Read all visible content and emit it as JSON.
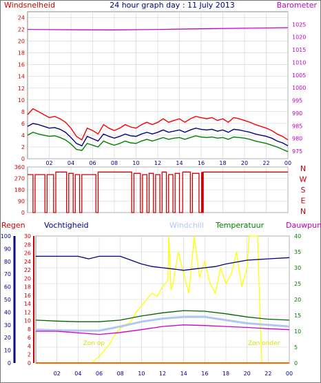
{
  "header": {
    "left_label": "Windsnelheid",
    "title": "24 hour graph day : 11 July 2013",
    "right_label": "Barometer"
  },
  "colors": {
    "wind_gust": "#ff0000",
    "wind_avg": "#000080",
    "wind_min": "#008000",
    "barometer": "#c000c0",
    "direction": "#cc0000",
    "humidity": "#000080",
    "rain": "#ff6600",
    "windchill": "#b0c8f0",
    "temperature": "#006400",
    "dewpoint": "#cc00cc",
    "sun": "#ffff00",
    "grid": "#d0d0d0",
    "axis_rain": "#cc0000",
    "axis_humidity": "#000080",
    "axis_temp": "#008000"
  },
  "chart_data": [
    {
      "type": "line",
      "id": "wind",
      "x_ticks": [
        "02",
        "04",
        "06",
        "08",
        "10",
        "12",
        "14",
        "16",
        "18",
        "20",
        "22",
        "00"
      ],
      "xlim": [
        0,
        24
      ],
      "left_axis": {
        "label": "Windsnelheid",
        "ticks": [
          0,
          2,
          4,
          6,
          8,
          10,
          12,
          14,
          16,
          18,
          20,
          22,
          24
        ],
        "ylim": [
          0,
          25
        ]
      },
      "right_axis": {
        "label": "Barometer",
        "ticks": [
          975,
          980,
          985,
          990,
          995,
          1000,
          1005,
          1010,
          1015,
          1020,
          1025
        ],
        "ylim": [
          972,
          1030
        ]
      },
      "series": [
        {
          "key": "wind_gust",
          "axis": "left",
          "hours": [
            0,
            0.5,
            1,
            1.5,
            2,
            2.5,
            3,
            3.5,
            4,
            4.5,
            5,
            5.5,
            6,
            6.5,
            7,
            7.5,
            8,
            8.5,
            9,
            9.5,
            10,
            10.5,
            11,
            11.5,
            12,
            12.5,
            13,
            13.5,
            14,
            14.5,
            15,
            15.5,
            16,
            16.5,
            17,
            17.5,
            18,
            18.5,
            19,
            19.5,
            20,
            20.5,
            21,
            21.5,
            22,
            22.5,
            23,
            23.5,
            24
          ],
          "values": [
            7.5,
            8.5,
            8,
            7.5,
            7,
            7.2,
            6.8,
            6.2,
            5.2,
            3.8,
            3.2,
            5.2,
            4.8,
            4.2,
            5.8,
            5.2,
            4.8,
            5.2,
            5.8,
            5.4,
            5.2,
            5.8,
            6.2,
            5.8,
            6.2,
            6.8,
            6.2,
            6.5,
            6.8,
            6.2,
            6.8,
            7.2,
            7.0,
            6.8,
            7.0,
            6.5,
            6.8,
            6.2,
            7.0,
            6.8,
            6.5,
            6.2,
            5.8,
            5.5,
            5.2,
            4.8,
            4.2,
            3.8,
            3.2
          ]
        },
        {
          "key": "wind_avg",
          "axis": "left",
          "hours": [
            0,
            0.5,
            1,
            1.5,
            2,
            2.5,
            3,
            3.5,
            4,
            4.5,
            5,
            5.5,
            6,
            6.5,
            7,
            7.5,
            8,
            8.5,
            9,
            9.5,
            10,
            10.5,
            11,
            11.5,
            12,
            12.5,
            13,
            13.5,
            14,
            14.5,
            15,
            15.5,
            16,
            16.5,
            17,
            17.5,
            18,
            18.5,
            19,
            19.5,
            20,
            20.5,
            21,
            21.5,
            22,
            22.5,
            23,
            23.5,
            24
          ],
          "values": [
            5.5,
            6,
            5.8,
            5.5,
            5.2,
            5.3,
            5,
            4.5,
            3.6,
            2.6,
            2.2,
            3.8,
            3.4,
            3,
            4.2,
            3.8,
            3.5,
            3.8,
            4.2,
            3.9,
            3.8,
            4.2,
            4.5,
            4.2,
            4.5,
            4.9,
            4.5,
            4.7,
            4.9,
            4.5,
            4.9,
            5.2,
            5.0,
            4.9,
            5.0,
            4.7,
            4.9,
            4.5,
            5.0,
            4.9,
            4.7,
            4.5,
            4.2,
            4.0,
            3.8,
            3.5,
            3.0,
            2.7,
            2.2
          ]
        },
        {
          "key": "wind_min",
          "axis": "left",
          "hours": [
            0,
            0.5,
            1,
            1.5,
            2,
            2.5,
            3,
            3.5,
            4,
            4.5,
            5,
            5.5,
            6,
            6.5,
            7,
            7.5,
            8,
            8.5,
            9,
            9.5,
            10,
            10.5,
            11,
            11.5,
            12,
            12.5,
            13,
            13.5,
            14,
            14.5,
            15,
            15.5,
            16,
            16.5,
            17,
            17.5,
            18,
            18.5,
            19,
            19.5,
            20,
            20.5,
            21,
            21.5,
            22,
            22.5,
            23,
            23.5,
            24
          ],
          "values": [
            4,
            4.5,
            4.2,
            4,
            3.8,
            3.9,
            3.6,
            3.2,
            2.5,
            1.6,
            1.4,
            2.6,
            2.3,
            2,
            3,
            2.6,
            2.3,
            2.6,
            3,
            2.7,
            2.6,
            3.0,
            3.3,
            3.0,
            3.3,
            3.6,
            3.3,
            3.5,
            3.6,
            3.3,
            3.6,
            3.9,
            3.7,
            3.6,
            3.7,
            3.5,
            3.6,
            3.3,
            3.7,
            3.6,
            3.5,
            3.3,
            3.0,
            2.8,
            2.6,
            2.3,
            2.0,
            1.6,
            1.2
          ]
        },
        {
          "key": "barometer",
          "axis": "right",
          "hours": [
            0,
            4,
            8,
            12,
            16,
            20,
            24
          ],
          "values": [
            1023,
            1022.9,
            1022.8,
            1023.0,
            1023.3,
            1023.5,
            1023.7
          ]
        }
      ]
    },
    {
      "type": "line",
      "id": "direction",
      "x_ticks": [
        "02",
        "04",
        "06",
        "08",
        "10",
        "12",
        "14",
        "16",
        "18",
        "20",
        "22",
        "00"
      ],
      "xlim": [
        0,
        24
      ],
      "left_axis": {
        "ticks": [
          0,
          90,
          180,
          270,
          360
        ],
        "ylim": [
          0,
          360
        ]
      },
      "right_labels": [
        "N",
        "W",
        "S",
        "E",
        "N"
      ],
      "series": [
        {
          "key": "direction",
          "hours": [
            0,
            0.5,
            0.5,
            0.7,
            0.7,
            1.6,
            1.6,
            1.8,
            1.8,
            2.4,
            2.4,
            2.6,
            2.6,
            3.6,
            3.6,
            3.8,
            3.8,
            4.2,
            4.2,
            4.4,
            4.4,
            4.8,
            4.8,
            5,
            5,
            6.3,
            6.3,
            6.5,
            6.5,
            9.6,
            9.6,
            9.8,
            9.8,
            10.4,
            10.4,
            10.6,
            10.6,
            11,
            11,
            11.2,
            11.2,
            11.6,
            11.6,
            11.8,
            11.8,
            12.2,
            12.2,
            12.4,
            12.4,
            12.8,
            12.8,
            13,
            13,
            13.4,
            13.4,
            13.6,
            13.6,
            14,
            14,
            14.3,
            14.3,
            15,
            15,
            15.2,
            15.2,
            15.8,
            15.8,
            16,
            16,
            16.2,
            16.2,
            24
          ],
          "values": [
            300,
            300,
            0,
            0,
            300,
            300,
            0,
            0,
            300,
            300,
            0,
            0,
            320,
            320,
            0,
            0,
            310,
            310,
            0,
            0,
            300,
            300,
            0,
            0,
            300,
            300,
            0,
            0,
            320,
            320,
            0,
            0,
            310,
            310,
            0,
            0,
            300,
            300,
            0,
            0,
            310,
            310,
            0,
            0,
            300,
            300,
            0,
            0,
            320,
            320,
            0,
            0,
            300,
            300,
            0,
            0,
            310,
            310,
            0,
            0,
            320,
            320,
            0,
            0,
            310,
            310,
            0,
            0,
            0,
            0,
            320,
            320
          ]
        }
      ]
    },
    {
      "type": "line",
      "id": "climate",
      "x_ticks": [
        "02",
        "04",
        "06",
        "08",
        "10",
        "12",
        "14",
        "16",
        "18",
        "20",
        "22",
        "00"
      ],
      "xlim": [
        0,
        24
      ],
      "legend": [
        "Regen",
        "Vochtigheid",
        "Windchill",
        "Temperatuur",
        "Dauwpunt"
      ],
      "humidity_axis": {
        "ticks": [
          0,
          10,
          20,
          30,
          40,
          50,
          60,
          70,
          80,
          90,
          100
        ],
        "ylim": [
          0,
          100
        ]
      },
      "rain_axis": {
        "ticks": [
          0,
          2,
          4,
          6,
          8,
          10,
          12,
          14,
          16,
          18,
          20,
          22,
          24,
          26,
          28,
          30
        ],
        "ylim": [
          0,
          30
        ]
      },
      "temp_axis": {
        "ticks": [
          0,
          5,
          10,
          15,
          20,
          25,
          30,
          35,
          40
        ],
        "ylim": [
          0,
          40
        ]
      },
      "annotations": [
        {
          "label": "Zon op",
          "hour": 5.5
        },
        {
          "label": "Zon onder",
          "hour": 21.6
        }
      ],
      "series": [
        {
          "key": "humidity",
          "axis": "humidity",
          "hours": [
            0,
            2,
            4,
            5,
            6,
            8,
            10,
            11,
            12,
            13,
            14,
            15,
            16,
            17,
            18,
            20,
            22,
            24
          ],
          "values": [
            84,
            84,
            84,
            82,
            84,
            84,
            78,
            76,
            75,
            74,
            73,
            74,
            75,
            76,
            78,
            81,
            82,
            83
          ]
        },
        {
          "key": "rain",
          "axis": "rain",
          "hours": [
            0,
            24
          ],
          "values": [
            0,
            0
          ]
        },
        {
          "key": "windchill",
          "axis": "temp",
          "hours": [
            0,
            2,
            4,
            6,
            8,
            10,
            12,
            14,
            16,
            18,
            20,
            22,
            24
          ],
          "values": [
            10.5,
            10.3,
            10.2,
            10.2,
            11.5,
            13.0,
            14.0,
            14.5,
            14.5,
            13.5,
            12.5,
            12.0,
            11.5
          ]
        },
        {
          "key": "temperature",
          "axis": "temp",
          "hours": [
            0,
            2,
            4,
            6,
            8,
            10,
            12,
            14,
            16,
            18,
            20,
            22,
            24
          ],
          "values": [
            13.5,
            13.2,
            13.0,
            13.0,
            13.5,
            14.8,
            15.8,
            16.5,
            16.3,
            15.5,
            14.5,
            13.8,
            13.5
          ]
        },
        {
          "key": "dewpoint",
          "axis": "temp",
          "hours": [
            0,
            2,
            4,
            6,
            8,
            10,
            12,
            14,
            16,
            18,
            20,
            22,
            24
          ],
          "values": [
            10.0,
            10.0,
            9.5,
            9.0,
            9.6,
            10.5,
            11.5,
            12.0,
            11.8,
            11.5,
            11.2,
            10.8,
            10.5
          ]
        },
        {
          "key": "sun",
          "axis": "temp",
          "hours": [
            0,
            5.4,
            5.6,
            6,
            6.5,
            7,
            7.5,
            8,
            8.5,
            9,
            9.5,
            10,
            10.5,
            11,
            11.5,
            12,
            12.5,
            12.6,
            12.8,
            13,
            13.5,
            14,
            14.5,
            15,
            15.5,
            16,
            16.5,
            17,
            17.5,
            18,
            18.5,
            19,
            19.5,
            20,
            20.2,
            20.4,
            21,
            21.2,
            21.4,
            24
          ],
          "values": [
            0,
            0,
            1,
            2,
            4,
            6,
            9,
            11,
            12,
            13,
            16,
            18,
            20,
            22,
            21,
            24,
            26,
            40,
            23,
            25,
            35,
            28,
            22,
            40,
            27,
            32,
            25,
            22,
            30,
            25,
            28,
            35,
            24,
            30,
            40,
            40,
            40,
            18,
            0,
            0
          ]
        }
      ]
    }
  ]
}
